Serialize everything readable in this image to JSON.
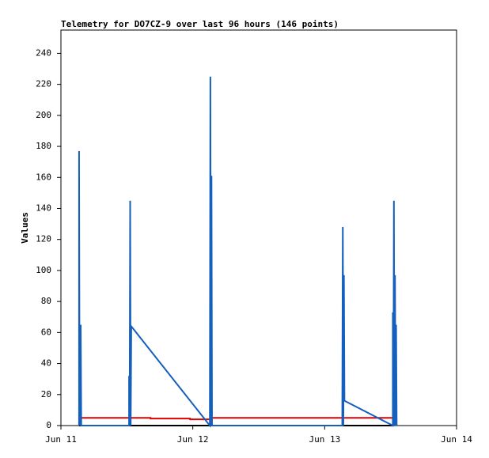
{
  "chart_data": {
    "type": "line",
    "title": "Telemetry for DO7CZ-9 over last 96 hours (146 points)",
    "y_label": "Values",
    "xlim": [
      0,
      72
    ],
    "xticks": [
      {
        "value": 0,
        "label": "Jun 11"
      },
      {
        "value": 24,
        "label": "Jun 12"
      },
      {
        "value": 48,
        "label": "Jun 13"
      },
      {
        "value": 72,
        "label": "Jun 14"
      }
    ],
    "ylim": [
      0,
      255
    ],
    "yticks": [
      0,
      20,
      40,
      60,
      80,
      100,
      120,
      140,
      160,
      180,
      200,
      220,
      240
    ],
    "grid": false,
    "series": [
      {
        "color": "#000000",
        "x": [
          3.3,
          60.5
        ],
        "values": [
          0,
          0
        ]
      },
      {
        "color": "#e00000",
        "x": [
          3.3,
          16.3,
          16.3,
          23.5,
          23.5,
          27.3,
          27.3,
          60.5
        ],
        "values": [
          5,
          5,
          4.5,
          4.5,
          4,
          4,
          5,
          5
        ]
      },
      {
        "color": "#1560bd",
        "x": [
          3.3,
          3.3,
          3.4,
          3.6,
          3.7,
          12.4,
          12.4,
          12.5,
          12.6,
          12.7,
          12.8,
          27.1,
          27.2,
          27.3,
          27.4,
          27.5,
          51.2,
          51.3,
          51.4,
          51.5,
          51.6,
          60.4,
          60.4,
          60.5,
          60.6,
          60.7,
          60.8,
          60.9,
          61.0,
          61.1
        ],
        "values": [
          0,
          177,
          0,
          65,
          0,
          0,
          32,
          0,
          145,
          0,
          64,
          0,
          225,
          0,
          161,
          0,
          0,
          128,
          0,
          97,
          16,
          0,
          73,
          0,
          145,
          0,
          97,
          0,
          65,
          0
        ]
      }
    ]
  }
}
